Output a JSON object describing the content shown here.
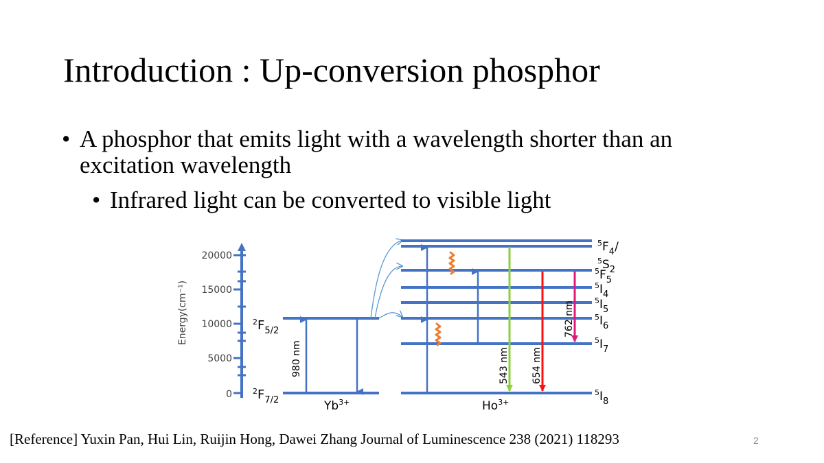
{
  "slide": {
    "title": "Introduction : Up-conversion phosphor",
    "bullets": [
      {
        "marker": "•",
        "text": "A phosphor that emits light with a wavelength shorter than an excitation wavelength"
      },
      {
        "marker": "•",
        "text": "Infrared light can be converted to visible light"
      }
    ],
    "reference": "[Reference] Yuxin Pan, Hui Lin, Ruijin Hong, Dawei Zhang Journal of Luminescence 238 (2021) 118293",
    "page_number": "2"
  },
  "diagram": {
    "energy_axis": {
      "label": "Energy(cm⁻¹)",
      "ticks": [
        "0",
        "5000",
        "10000",
        "15000",
        "20000"
      ]
    },
    "yb_ion": {
      "name_base": "Yb",
      "name_sup": "3+",
      "levels": [
        {
          "pre": "2",
          "base": "F",
          "sub": "7/2"
        },
        {
          "pre": "2",
          "base": "F",
          "sub": "5/2"
        }
      ],
      "excitation_label": "980 nm"
    },
    "ho_ion": {
      "name_base": "Ho",
      "name_sup": "3+",
      "levels": [
        {
          "pre": "5",
          "base": "I",
          "sub": "8"
        },
        {
          "pre": "5",
          "base": "I",
          "sub": "7"
        },
        {
          "pre": "5",
          "base": "I",
          "sub": "6"
        },
        {
          "pre": "5",
          "base": "I",
          "sub": "5"
        },
        {
          "pre": "5",
          "base": "I",
          "sub": "4"
        },
        {
          "pre": "5",
          "base": "F",
          "sub": "5"
        },
        {
          "pre": "5",
          "base": "S",
          "sub": "2"
        },
        {
          "pre": "5",
          "base": "F",
          "sub": "4",
          "post": "/"
        }
      ],
      "emissions": [
        {
          "label": "543 nm",
          "color": "#8ccf3c"
        },
        {
          "label": "654 nm",
          "color": "#ff1010"
        },
        {
          "label": "762 nm",
          "color": "#e0187a"
        }
      ]
    },
    "colors": {
      "level": "#4472c4",
      "transfer": "#5b9bd5",
      "relaxation": "#ed7d31"
    }
  }
}
